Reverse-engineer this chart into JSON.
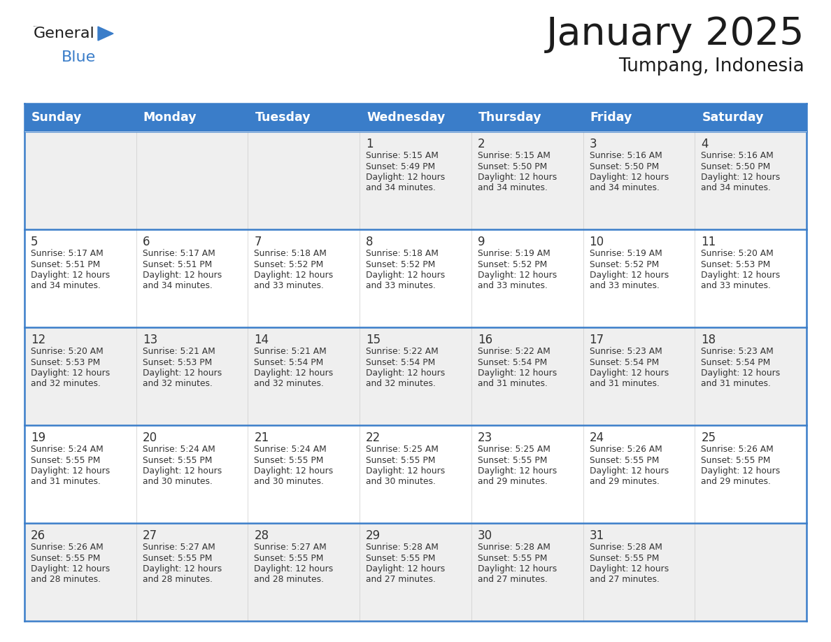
{
  "title": "January 2025",
  "subtitle": "Tumpang, Indonesia",
  "days_of_week": [
    "Sunday",
    "Monday",
    "Tuesday",
    "Wednesday",
    "Thursday",
    "Friday",
    "Saturday"
  ],
  "header_bg": "#3A7DC9",
  "header_text_color": "#FFFFFF",
  "row_bg": [
    "#EFEFEF",
    "#FFFFFF",
    "#EFEFEF",
    "#FFFFFF",
    "#EFEFEF"
  ],
  "row_line_color": "#3A7DC9",
  "text_color": "#333333",
  "border_color": "#3A7DC9",
  "calendar_data": [
    [
      null,
      null,
      null,
      {
        "day": 1,
        "sunrise": "5:15 AM",
        "sunset": "5:49 PM",
        "daylight": "12 hours and 34 minutes."
      },
      {
        "day": 2,
        "sunrise": "5:15 AM",
        "sunset": "5:50 PM",
        "daylight": "12 hours and 34 minutes."
      },
      {
        "day": 3,
        "sunrise": "5:16 AM",
        "sunset": "5:50 PM",
        "daylight": "12 hours and 34 minutes."
      },
      {
        "day": 4,
        "sunrise": "5:16 AM",
        "sunset": "5:50 PM",
        "daylight": "12 hours and 34 minutes."
      }
    ],
    [
      {
        "day": 5,
        "sunrise": "5:17 AM",
        "sunset": "5:51 PM",
        "daylight": "12 hours and 34 minutes."
      },
      {
        "day": 6,
        "sunrise": "5:17 AM",
        "sunset": "5:51 PM",
        "daylight": "12 hours and 34 minutes."
      },
      {
        "day": 7,
        "sunrise": "5:18 AM",
        "sunset": "5:52 PM",
        "daylight": "12 hours and 33 minutes."
      },
      {
        "day": 8,
        "sunrise": "5:18 AM",
        "sunset": "5:52 PM",
        "daylight": "12 hours and 33 minutes."
      },
      {
        "day": 9,
        "sunrise": "5:19 AM",
        "sunset": "5:52 PM",
        "daylight": "12 hours and 33 minutes."
      },
      {
        "day": 10,
        "sunrise": "5:19 AM",
        "sunset": "5:52 PM",
        "daylight": "12 hours and 33 minutes."
      },
      {
        "day": 11,
        "sunrise": "5:20 AM",
        "sunset": "5:53 PM",
        "daylight": "12 hours and 33 minutes."
      }
    ],
    [
      {
        "day": 12,
        "sunrise": "5:20 AM",
        "sunset": "5:53 PM",
        "daylight": "12 hours and 32 minutes."
      },
      {
        "day": 13,
        "sunrise": "5:21 AM",
        "sunset": "5:53 PM",
        "daylight": "12 hours and 32 minutes."
      },
      {
        "day": 14,
        "sunrise": "5:21 AM",
        "sunset": "5:54 PM",
        "daylight": "12 hours and 32 minutes."
      },
      {
        "day": 15,
        "sunrise": "5:22 AM",
        "sunset": "5:54 PM",
        "daylight": "12 hours and 32 minutes."
      },
      {
        "day": 16,
        "sunrise": "5:22 AM",
        "sunset": "5:54 PM",
        "daylight": "12 hours and 31 minutes."
      },
      {
        "day": 17,
        "sunrise": "5:23 AM",
        "sunset": "5:54 PM",
        "daylight": "12 hours and 31 minutes."
      },
      {
        "day": 18,
        "sunrise": "5:23 AM",
        "sunset": "5:54 PM",
        "daylight": "12 hours and 31 minutes."
      }
    ],
    [
      {
        "day": 19,
        "sunrise": "5:24 AM",
        "sunset": "5:55 PM",
        "daylight": "12 hours and 31 minutes."
      },
      {
        "day": 20,
        "sunrise": "5:24 AM",
        "sunset": "5:55 PM",
        "daylight": "12 hours and 30 minutes."
      },
      {
        "day": 21,
        "sunrise": "5:24 AM",
        "sunset": "5:55 PM",
        "daylight": "12 hours and 30 minutes."
      },
      {
        "day": 22,
        "sunrise": "5:25 AM",
        "sunset": "5:55 PM",
        "daylight": "12 hours and 30 minutes."
      },
      {
        "day": 23,
        "sunrise": "5:25 AM",
        "sunset": "5:55 PM",
        "daylight": "12 hours and 29 minutes."
      },
      {
        "day": 24,
        "sunrise": "5:26 AM",
        "sunset": "5:55 PM",
        "daylight": "12 hours and 29 minutes."
      },
      {
        "day": 25,
        "sunrise": "5:26 AM",
        "sunset": "5:55 PM",
        "daylight": "12 hours and 29 minutes."
      }
    ],
    [
      {
        "day": 26,
        "sunrise": "5:26 AM",
        "sunset": "5:55 PM",
        "daylight": "12 hours and 28 minutes."
      },
      {
        "day": 27,
        "sunrise": "5:27 AM",
        "sunset": "5:55 PM",
        "daylight": "12 hours and 28 minutes."
      },
      {
        "day": 28,
        "sunrise": "5:27 AM",
        "sunset": "5:55 PM",
        "daylight": "12 hours and 28 minutes."
      },
      {
        "day": 29,
        "sunrise": "5:28 AM",
        "sunset": "5:55 PM",
        "daylight": "12 hours and 27 minutes."
      },
      {
        "day": 30,
        "sunrise": "5:28 AM",
        "sunset": "5:55 PM",
        "daylight": "12 hours and 27 minutes."
      },
      {
        "day": 31,
        "sunrise": "5:28 AM",
        "sunset": "5:55 PM",
        "daylight": "12 hours and 27 minutes."
      },
      null
    ]
  ],
  "logo_general_color": "#1a1a1a",
  "logo_blue_color": "#3A7DC9",
  "logo_triangle_color": "#3A7DC9"
}
